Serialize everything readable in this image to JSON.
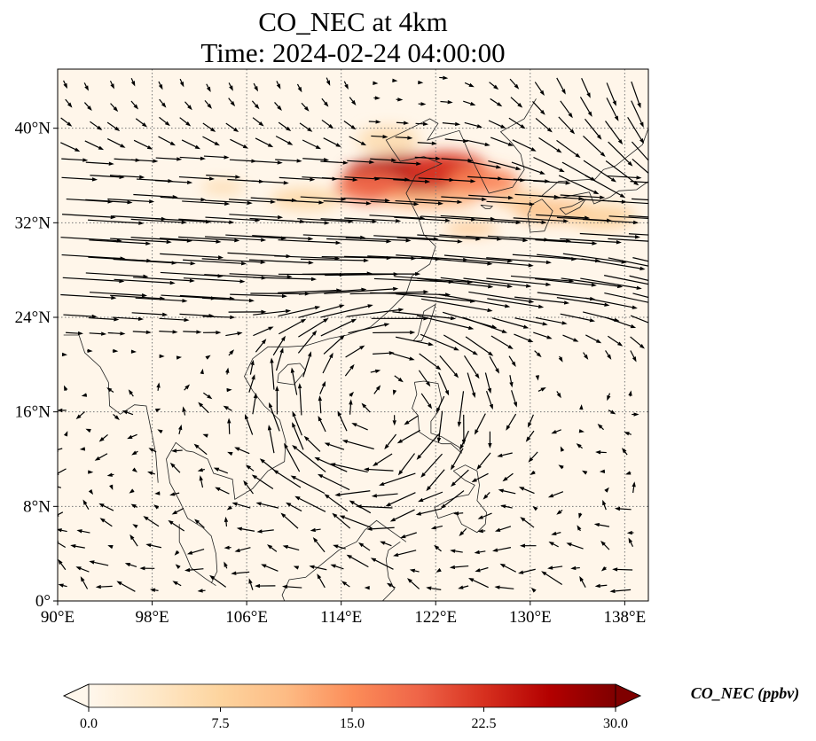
{
  "chart_data": {
    "type": "heatmap",
    "title": [
      "CO_NEC at 4km",
      "Time: 2024-02-24 04:00:00"
    ],
    "variable": "CO_NEC",
    "level": "4km",
    "time": "2024-02-24 04:00:00",
    "map": {
      "lon_range": [
        90,
        140
      ],
      "lat_range": [
        0,
        45
      ],
      "x_ticks": [
        90,
        98,
        106,
        114,
        122,
        130,
        138
      ],
      "x_tick_labels": [
        "90°E",
        "98°E",
        "106°E",
        "114°E",
        "122°E",
        "130°E",
        "138°E"
      ],
      "y_ticks": [
        0,
        8,
        16,
        24,
        32,
        40
      ],
      "y_tick_labels": [
        "0°",
        "8°N",
        "16°N",
        "24°N",
        "32°N",
        "40°N"
      ],
      "grid": true,
      "grid_style": "dotted",
      "coastlines": true,
      "overlay": "wind vectors"
    },
    "colorbar": {
      "label": "CO_NEC (ppbv)",
      "cmap": "OrRd",
      "range": [
        0,
        30
      ],
      "ticks": [
        0.0,
        7.5,
        15.0,
        22.5,
        30.0
      ],
      "tick_labels": [
        "0.0",
        "7.5",
        "15.0",
        "22.5",
        "30.0"
      ],
      "extend": "both",
      "orientation": "horizontal",
      "colors": [
        "#fff7ec",
        "#fee8c8",
        "#fdd49e",
        "#fdbb84",
        "#fc8d59",
        "#ef6548",
        "#d7301f",
        "#b30000",
        "#7f0000"
      ]
    },
    "plumes": [
      {
        "lon": 119.5,
        "lat": 36.0,
        "value": 26
      },
      {
        "lon": 123.0,
        "lat": 36.5,
        "value": 22
      },
      {
        "lon": 116.5,
        "lat": 35.0,
        "value": 18
      },
      {
        "lon": 126.0,
        "lat": 35.5,
        "value": 16
      },
      {
        "lon": 121.5,
        "lat": 34.0,
        "value": 12
      },
      {
        "lon": 132.0,
        "lat": 33.0,
        "value": 10
      },
      {
        "lon": 136.0,
        "lat": 32.5,
        "value": 8
      },
      {
        "lon": 111.0,
        "lat": 34.0,
        "value": 7
      },
      {
        "lon": 104.0,
        "lat": 35.0,
        "value": 6
      },
      {
        "lon": 125.0,
        "lat": 31.5,
        "value": 9
      },
      {
        "lon": 118.0,
        "lat": 39.0,
        "value": 6
      },
      {
        "lon": 129.0,
        "lat": 34.0,
        "value": 9
      }
    ],
    "background_value": 1.0
  }
}
